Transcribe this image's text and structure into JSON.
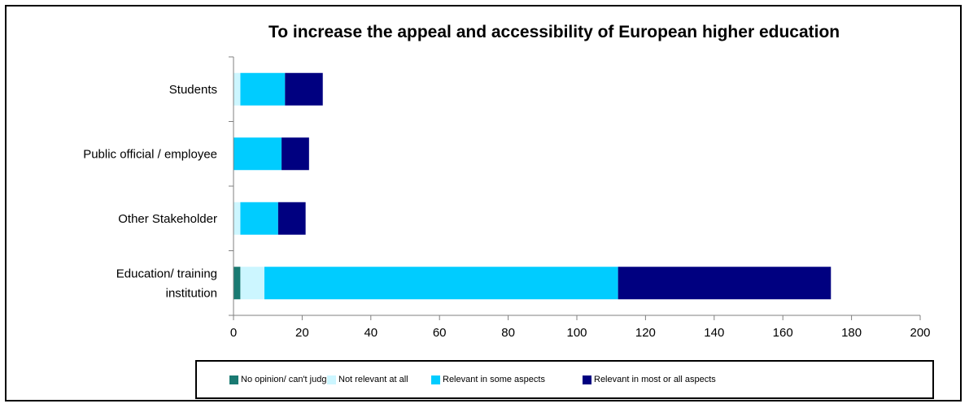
{
  "chart_data": {
    "type": "bar",
    "orientation": "horizontal",
    "stacked": true,
    "title": "To increase the appeal and accessibility of European higher education",
    "categories": [
      "Students",
      "Public official / employee",
      "Other Stakeholder",
      "Education/ training institution"
    ],
    "category_lines": [
      [
        "Students"
      ],
      [
        "Public official / employee"
      ],
      [
        "Other Stakeholder"
      ],
      [
        "Education/ training",
        "institution"
      ]
    ],
    "series": [
      {
        "name": "No opinion/ can't judge",
        "color": "#1a7a72",
        "values": [
          0,
          0,
          0,
          2
        ]
      },
      {
        "name": "Not relevant at all",
        "color": "#ccf6ff",
        "values": [
          2,
          0,
          2,
          7
        ]
      },
      {
        "name": "Relevant in some aspects",
        "color": "#00ccff",
        "values": [
          13,
          14,
          11,
          103
        ]
      },
      {
        "name": "Relevant in most or all aspects",
        "color": "#000080",
        "values": [
          11,
          8,
          8,
          62
        ]
      }
    ],
    "xlim": [
      0,
      200
    ],
    "xticks": [
      0,
      20,
      40,
      60,
      80,
      100,
      120,
      140,
      160,
      180,
      200
    ],
    "grid": false,
    "legend_position": "bottom"
  }
}
